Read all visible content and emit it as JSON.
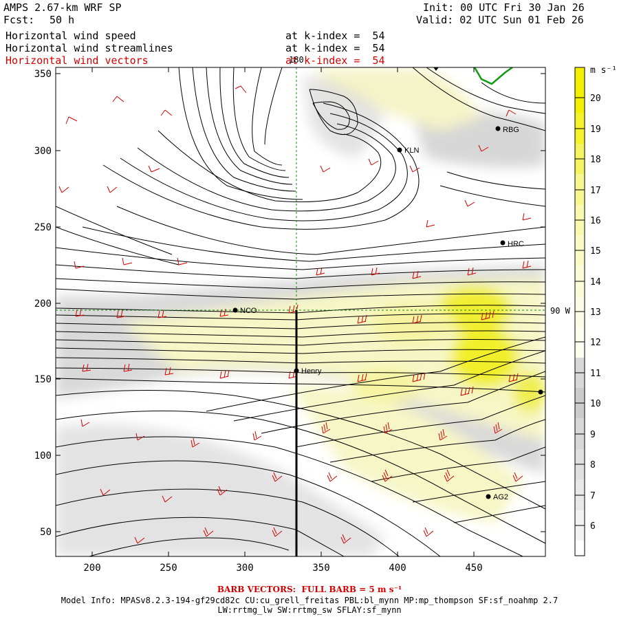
{
  "header": {
    "model_title": "AMPS 2.67-km WRF SP",
    "forecast_label": "Fcst:",
    "forecast_hours": "50 h",
    "init_time": "Init: 00 UTC Fri 30 Jan 26",
    "valid_time": "Valid: 02 UTC Sun 01 Feb 26",
    "fields": [
      {
        "name": "Horizontal wind speed",
        "level": "at k-index =  54"
      },
      {
        "name": "Horizontal wind streamlines",
        "level": "at k-index =  54"
      },
      {
        "name": "Horizontal wind vectors",
        "level": "at k-index =  54"
      }
    ]
  },
  "map": {
    "x_ticks": [
      "200",
      "250",
      "300",
      "350",
      "400",
      "450"
    ],
    "y_ticks": [
      "350",
      "300",
      "250",
      "200",
      "150",
      "100",
      "50"
    ],
    "meridian_label": "180",
    "parallel_label": "90 W",
    "stations": [
      {
        "code": "RBG"
      },
      {
        "code": "KLN"
      },
      {
        "code": "HRC"
      },
      {
        "code": "NCO"
      },
      {
        "code": "Henry"
      },
      {
        "code": "AG2"
      },
      {
        "code": ""
      }
    ]
  },
  "colorbar": {
    "unit": "m s⁻¹",
    "labels": [
      "20",
      "19",
      "18",
      "17",
      "16",
      "15",
      "14",
      "13",
      "12",
      "11",
      "10",
      "9",
      "8",
      "7",
      "6"
    ]
  },
  "footer": {
    "barb_vectors": "BARB VECTORS:  FULL BARB = 5 m s⁻¹",
    "model_info": "Model Info: MPASv8.2.3-194-gf29cd82c CU:cu_grell_freitas PBL:bl_mynn MP:mp_thompson SF:sf_noahmp 2.7",
    "physics": "LW:rrtmg_lw SW:rrtmg_sw SFLAY:sf_mynn"
  }
}
